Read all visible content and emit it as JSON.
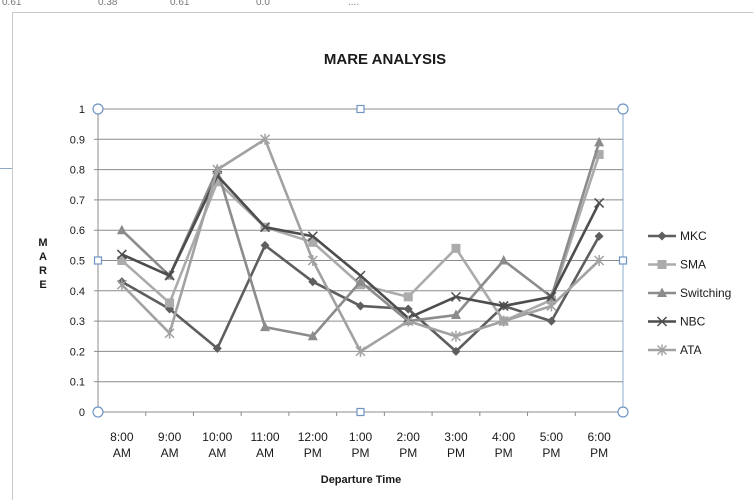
{
  "sheet_strip": {
    "cells": [
      "0.61",
      "0.38",
      "0.61",
      "0.0",
      "...."
    ]
  },
  "chart_data": {
    "type": "line",
    "title": "MARE ANALYSIS",
    "xlabel": "Departure Time",
    "ylabel": "M A R E",
    "ylim": [
      0,
      1
    ],
    "yticks": [
      "0",
      "0.1",
      "0.2",
      "0.3",
      "0.4",
      "0.5",
      "0.6",
      "0.7",
      "0.8",
      "0.9",
      "1"
    ],
    "grid": true,
    "legend": "right",
    "categories": [
      "8:00 AM",
      "9:00 AM",
      "10:00 AM",
      "11:00 AM",
      "12:00 PM",
      "1:00 PM",
      "2:00 PM",
      "3:00 PM",
      "4:00 PM",
      "5:00 PM",
      "6:00 PM"
    ],
    "series": [
      {
        "name": "MKC",
        "color": "#5e5e5e",
        "marker": "diamond",
        "values": [
          0.43,
          0.34,
          0.21,
          0.55,
          0.43,
          0.35,
          0.34,
          0.2,
          0.35,
          0.3,
          0.58
        ]
      },
      {
        "name": "SMA",
        "color": "#ababab",
        "marker": "square",
        "values": [
          0.5,
          0.36,
          0.76,
          0.61,
          0.56,
          0.42,
          0.38,
          0.54,
          0.3,
          0.37,
          0.85
        ]
      },
      {
        "name": "Switching",
        "color": "#8c8c8c",
        "marker": "triangle",
        "values": [
          0.6,
          0.45,
          0.8,
          0.28,
          0.25,
          0.43,
          0.3,
          0.32,
          0.5,
          0.38,
          0.89
        ]
      },
      {
        "name": "NBC",
        "color": "#4d4d4d",
        "marker": "x",
        "values": [
          0.52,
          0.45,
          0.78,
          0.61,
          0.58,
          0.45,
          0.31,
          0.38,
          0.35,
          0.38,
          0.69
        ]
      },
      {
        "name": "ATA",
        "color": "#a2a2a2",
        "marker": "star",
        "values": [
          0.42,
          0.26,
          0.8,
          0.9,
          0.5,
          0.2,
          0.3,
          0.25,
          0.3,
          0.35,
          0.5
        ]
      }
    ]
  }
}
